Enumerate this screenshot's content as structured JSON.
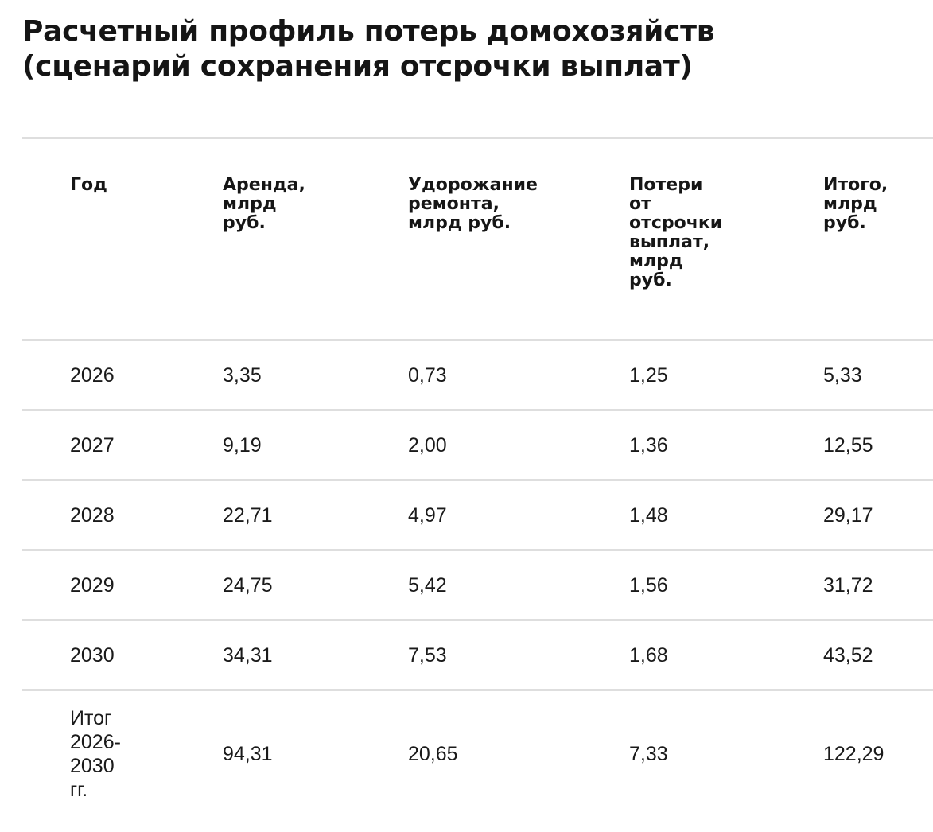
{
  "chart_data": {
    "type": "table",
    "title_lines": [
      "Расчетный профиль потерь домохозяйств",
      "(сценарий сохранения отсрочки выплат)"
    ],
    "columns": [
      "Год",
      "Аренда,\nмлрд\nруб.",
      "Удорожание\nремонта,\nмлрд руб.",
      "Потери\nот\nотсрочки\nвыплат,\nмлрд\nруб.",
      "Итого,\nмлрд\nруб."
    ],
    "rows": [
      [
        "2026",
        "3,35",
        "0,73",
        "1,25",
        "5,33"
      ],
      [
        "2027",
        "9,19",
        "2,00",
        "1,36",
        "12,55"
      ],
      [
        "2028",
        "22,71",
        "4,97",
        "1,48",
        "29,17"
      ],
      [
        "2029",
        "24,75",
        "5,42",
        "1,56",
        "31,72"
      ],
      [
        "2030",
        "34,31",
        "7,53",
        "1,68",
        "43,52"
      ]
    ],
    "total_row": [
      "Итог\n2026-\n2030\nгг.",
      "94,31",
      "20,65",
      "7,33",
      "122,29"
    ]
  }
}
